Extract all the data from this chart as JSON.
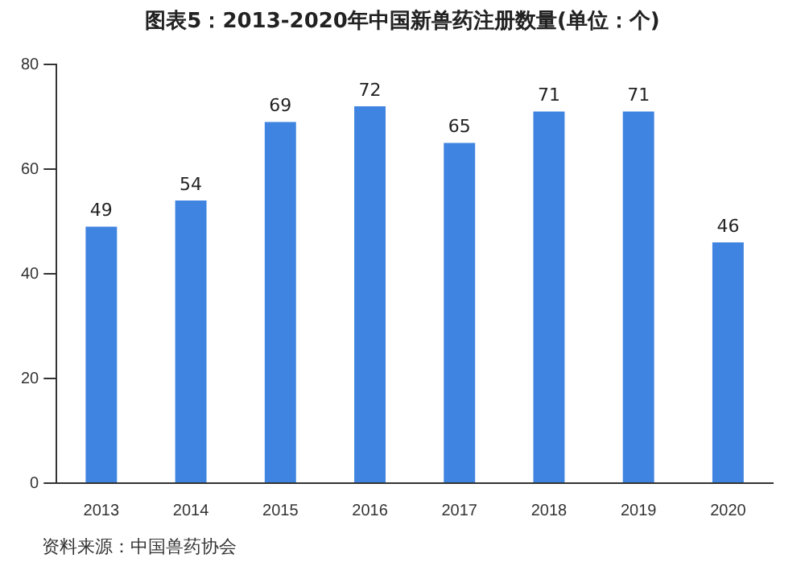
{
  "chart_data": {
    "type": "bar",
    "title": "图表5：2013-2020年中国新兽药注册数量(单位：个)",
    "categories": [
      "2013",
      "2014",
      "2015",
      "2016",
      "2017",
      "2018",
      "2019",
      "2020"
    ],
    "values": [
      49,
      54,
      69,
      72,
      65,
      71,
      71,
      46
    ],
    "color": "#3f84e0",
    "ylim": [
      0,
      80
    ],
    "yticks": [
      0,
      20,
      40,
      60,
      80
    ],
    "grid": false,
    "data_labels": true,
    "annotations": [
      "资料来源：中国兽药协会"
    ]
  }
}
